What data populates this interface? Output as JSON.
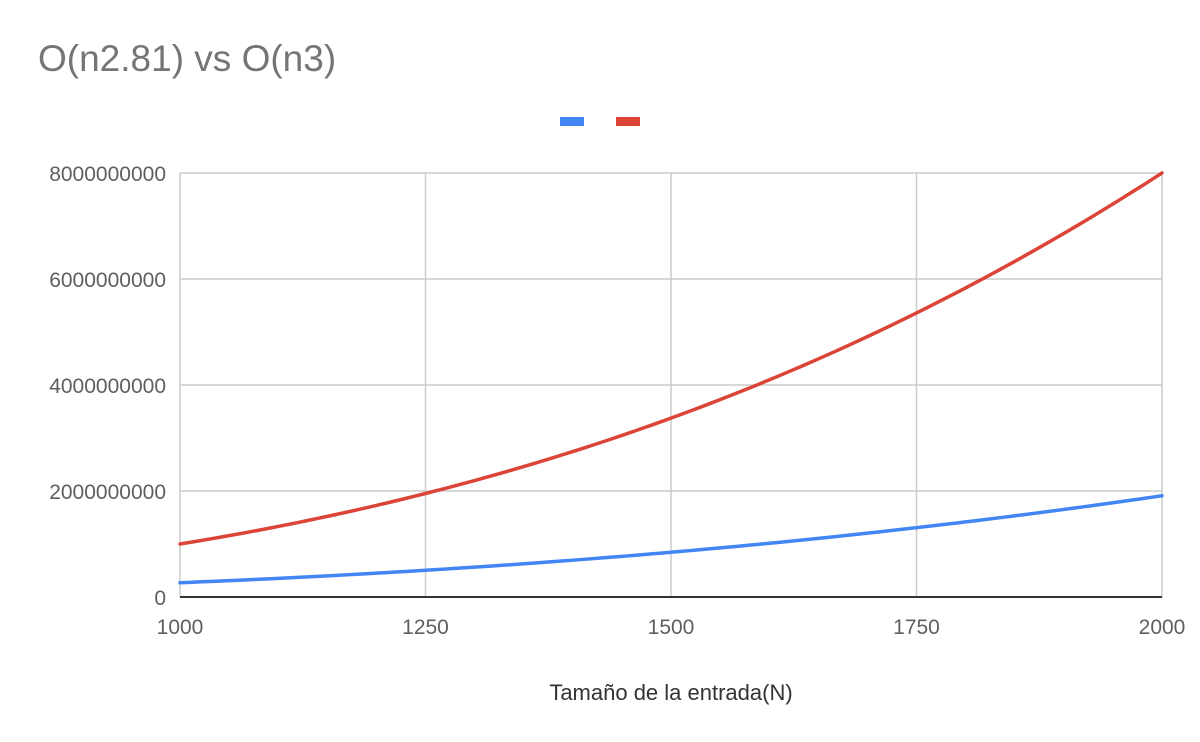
{
  "chart_data": {
    "type": "line",
    "title": "O(n2.81) vs O(n3)",
    "xlabel": "Tamaño de la entrada(N)",
    "ylabel": "",
    "xlim": [
      1000,
      2000
    ],
    "ylim": [
      0,
      8000000000
    ],
    "x_ticks": [
      "1000",
      "1250",
      "1500",
      "1750",
      "2000"
    ],
    "y_ticks": [
      "0",
      "2000000000",
      "4000000000",
      "6000000000",
      "8000000000"
    ],
    "grid": true,
    "legend_position": "top-center",
    "x": [
      1000,
      1125,
      1250,
      1375,
      1500,
      1625,
      1750,
      1875,
      2000
    ],
    "series": [
      {
        "color": "#4285f4",
        "values": [
          269000000,
          375000000,
          504000000,
          660000000,
          844000000,
          1059000000,
          1308000000,
          1591000000,
          1910000000
        ]
      },
      {
        "color": "#db4437",
        "values": [
          1000000000,
          1424000000,
          1953000000,
          2600000000,
          3375000000,
          4291000000,
          5359000000,
          6592000000,
          8000000000
        ]
      }
    ]
  }
}
